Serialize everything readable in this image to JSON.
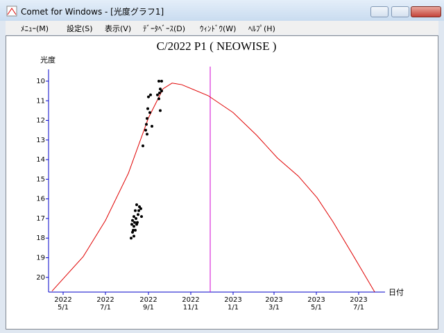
{
  "window": {
    "title": "Comet for Windows - [光度グラフ1]",
    "menu": [
      "ﾒﾆｭｰ(M)",
      "設定(S)",
      "表示(V)",
      "ﾃﾞｰﾀﾍﾞｰｽ(D)",
      "ｳｨﾝﾄﾞｳ(W)",
      "ﾍﾙﾌﾟ(H)"
    ]
  },
  "chart_data": {
    "type": "line",
    "title": "C/2022 P1 ( NEOWISE )",
    "y_label": "光度",
    "x_label": "日付",
    "xlim": [
      99,
      584
    ],
    "ylim": [
      9.4,
      20.75
    ],
    "y_inverted": true,
    "xticks": [
      {
        "value": 120,
        "label": "2022\n5/1"
      },
      {
        "value": 181,
        "label": "2022\n7/1"
      },
      {
        "value": 243,
        "label": "2022\n9/1"
      },
      {
        "value": 304,
        "label": "2022\n11/1"
      },
      {
        "value": 365,
        "label": "2023\n1/1"
      },
      {
        "value": 424,
        "label": "2023\n3/1"
      },
      {
        "value": 485,
        "label": "2023\n5/1"
      },
      {
        "value": 546,
        "label": "2023\n7/1"
      }
    ],
    "yticks": [
      10,
      11,
      12,
      13,
      14,
      15,
      16,
      17,
      18,
      19,
      20
    ],
    "axis_color": "#0000c8",
    "current_date_line": 332,
    "current_date_color": "#d000d0",
    "series": [
      {
        "style": "line",
        "color": "#e00000",
        "x": [
          104,
          149,
          181,
          214,
          243,
          264,
          277,
          291,
          329,
          365,
          399,
          429,
          459,
          486,
          509,
          539,
          569
        ],
        "values": [
          20.7,
          18.94,
          17.1,
          14.7,
          11.87,
          10.39,
          10.1,
          10.18,
          10.74,
          11.6,
          12.76,
          13.92,
          14.84,
          15.94,
          17.17,
          18.94,
          20.74
        ]
      },
      {
        "style": "points",
        "color": "#000000",
        "x": [
          226,
          230,
          229,
          232,
          224,
          228,
          222,
          225,
          220,
          223,
          219,
          222,
          226,
          221,
          224,
          218,
          222,
          227,
          233,
          220,
          258,
          262,
          260,
          262,
          256,
          259,
          246,
          243,
          258,
          242,
          245,
          260,
          241,
          240,
          248,
          239,
          241,
          235
        ],
        "values": [
          16.3,
          16.4,
          16.6,
          16.5,
          16.6,
          16.8,
          16.9,
          17.0,
          17.1,
          17.2,
          17.3,
          17.4,
          17.3,
          17.6,
          17.6,
          18.0,
          17.9,
          17.2,
          16.9,
          17.7,
          10.0,
          10.0,
          10.4,
          10.5,
          10.7,
          10.6,
          10.7,
          10.8,
          10.9,
          11.4,
          11.6,
          11.5,
          11.9,
          12.2,
          12.3,
          12.5,
          12.7,
          13.3
        ]
      }
    ]
  }
}
